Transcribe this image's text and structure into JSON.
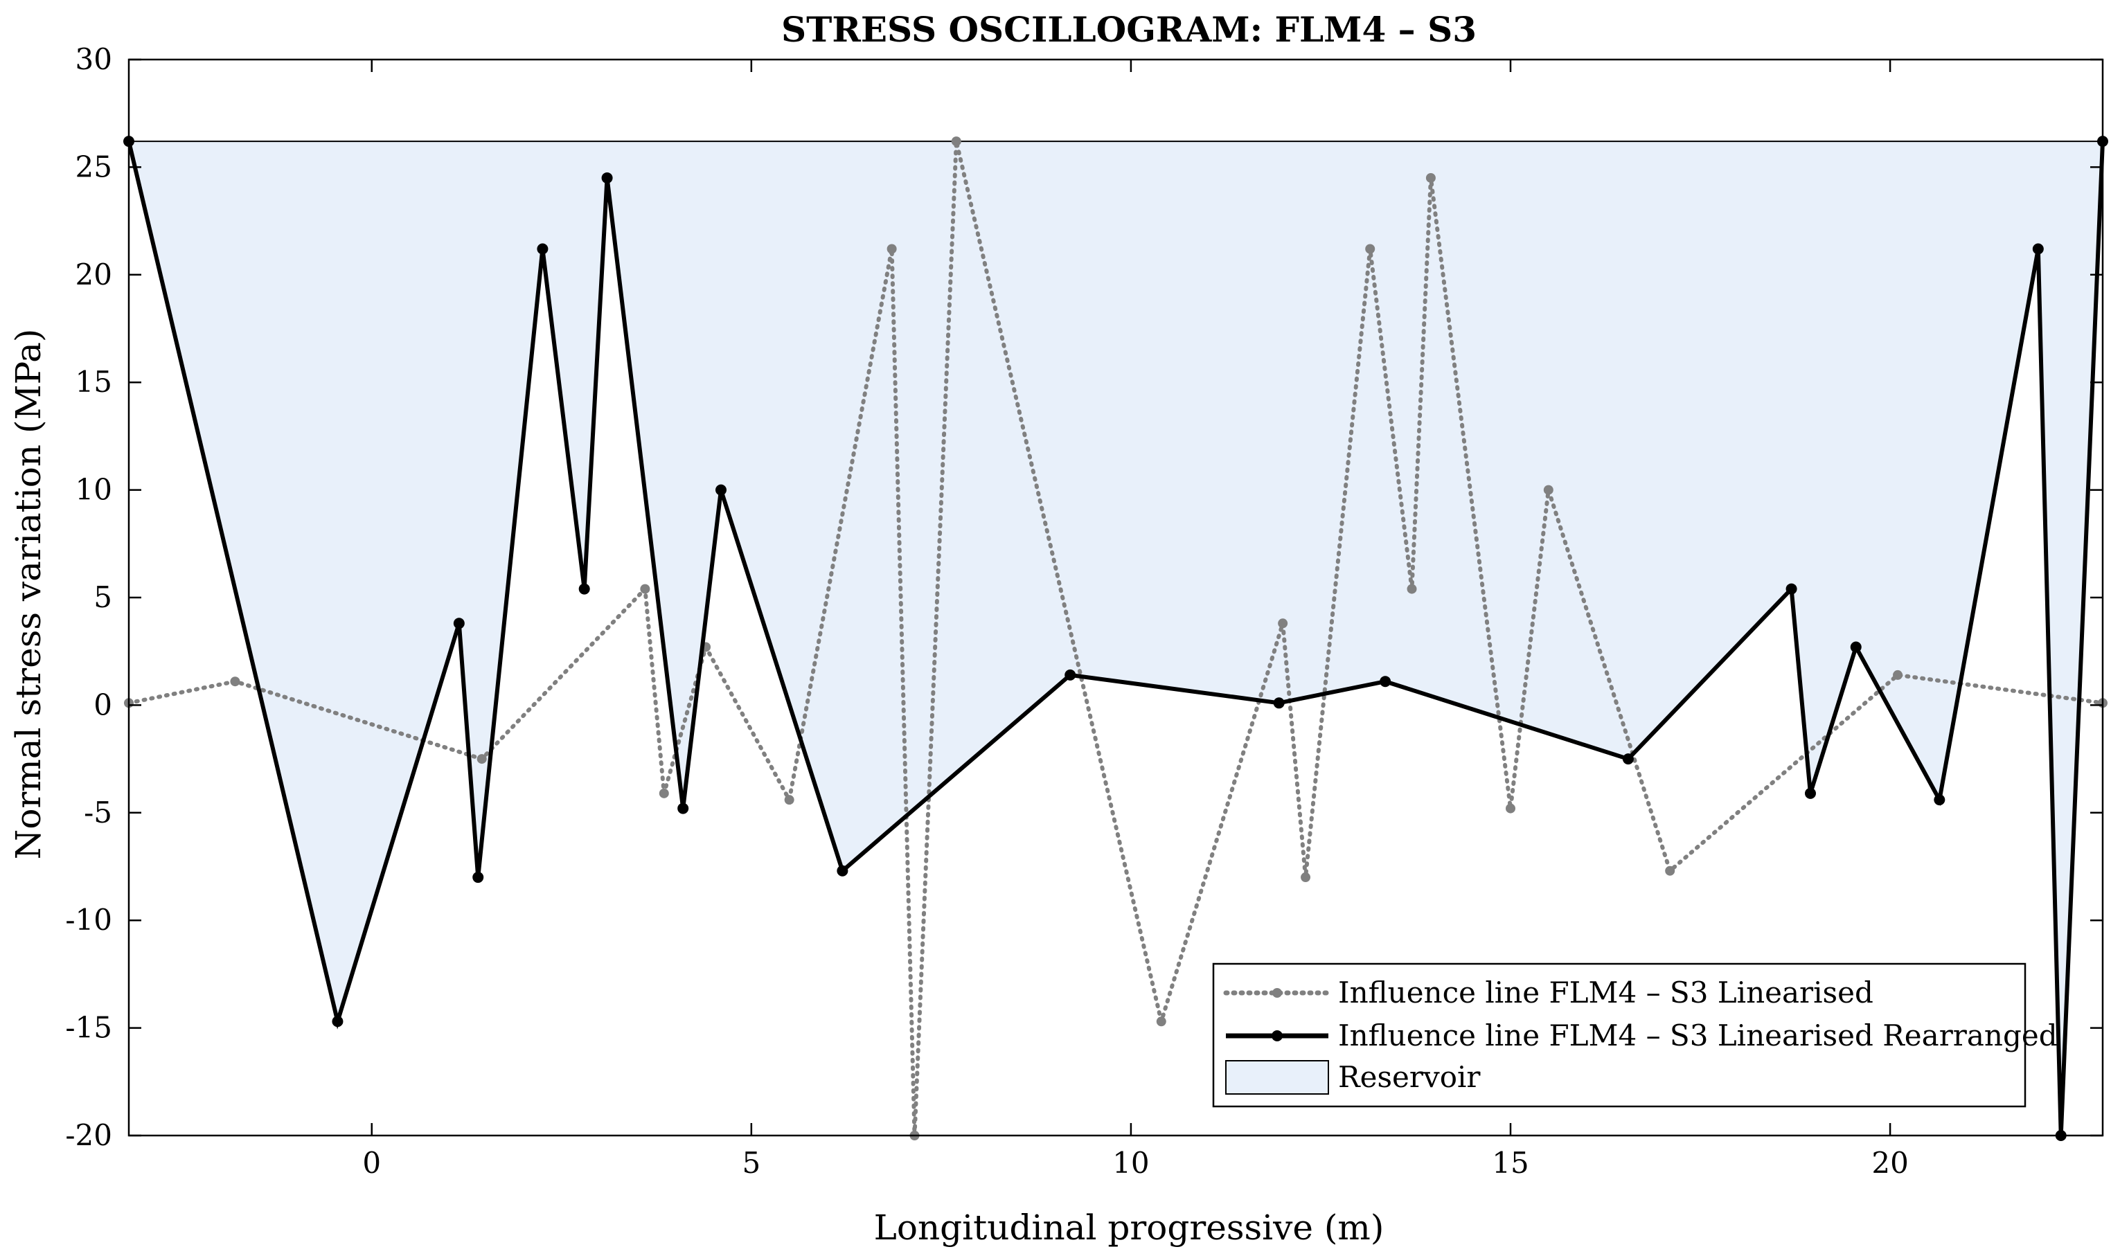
{
  "chart_data": {
    "type": "line",
    "title": "STRESS OSCILLOGRAM: FLM4 – S3",
    "xlabel": "Longitudinal progressive (m)",
    "ylabel": "Normal stress variation (MPa)",
    "xlim": [
      -3.2,
      22.8
    ],
    "ylim": [
      -20,
      30
    ],
    "xticks": [
      0,
      5,
      10,
      15,
      20
    ],
    "yticks": [
      -20,
      -15,
      -10,
      -5,
      0,
      5,
      10,
      15,
      20,
      25,
      30
    ],
    "grid": false,
    "legend_position": "bottom-right",
    "reservoir_level": 26.2,
    "series": [
      {
        "name": "Influence line FLM4 – S3 Linearised",
        "style": "dotted",
        "color": "#808080",
        "x": [
          -3.2,
          -1.8,
          1.45,
          3.6,
          3.85,
          4.4,
          5.5,
          6.85,
          7.15,
          7.7,
          10.4,
          12.0,
          12.3,
          13.15,
          13.7,
          13.95,
          15.0,
          15.5,
          17.1,
          20.1,
          22.8
        ],
        "y": [
          0.1,
          1.1,
          -2.5,
          5.4,
          -4.1,
          2.7,
          -4.4,
          21.2,
          -20.0,
          26.2,
          -14.7,
          3.8,
          -8.0,
          21.2,
          5.4,
          24.5,
          -4.8,
          10.0,
          -7.7,
          1.4,
          0.1
        ]
      },
      {
        "name": "Influence line FLM4 – S3 Linearised Rearranged",
        "style": "solid",
        "color": "#000000",
        "x": [
          -3.2,
          -0.45,
          1.15,
          1.4,
          2.25,
          2.8,
          3.1,
          4.1,
          4.6,
          6.2,
          9.2,
          11.95,
          13.35,
          16.55,
          18.7,
          18.95,
          19.55,
          20.65,
          21.95,
          22.25,
          22.8
        ],
        "y": [
          26.2,
          -14.7,
          3.8,
          -8.0,
          21.2,
          5.4,
          24.5,
          -4.8,
          10.0,
          -7.7,
          1.4,
          0.1,
          1.1,
          -2.5,
          5.4,
          -4.1,
          2.7,
          -4.4,
          21.2,
          -20.0,
          26.2
        ]
      },
      {
        "name": "Reservoir",
        "style": "fill",
        "color": "#e8f0fa"
      }
    ]
  }
}
